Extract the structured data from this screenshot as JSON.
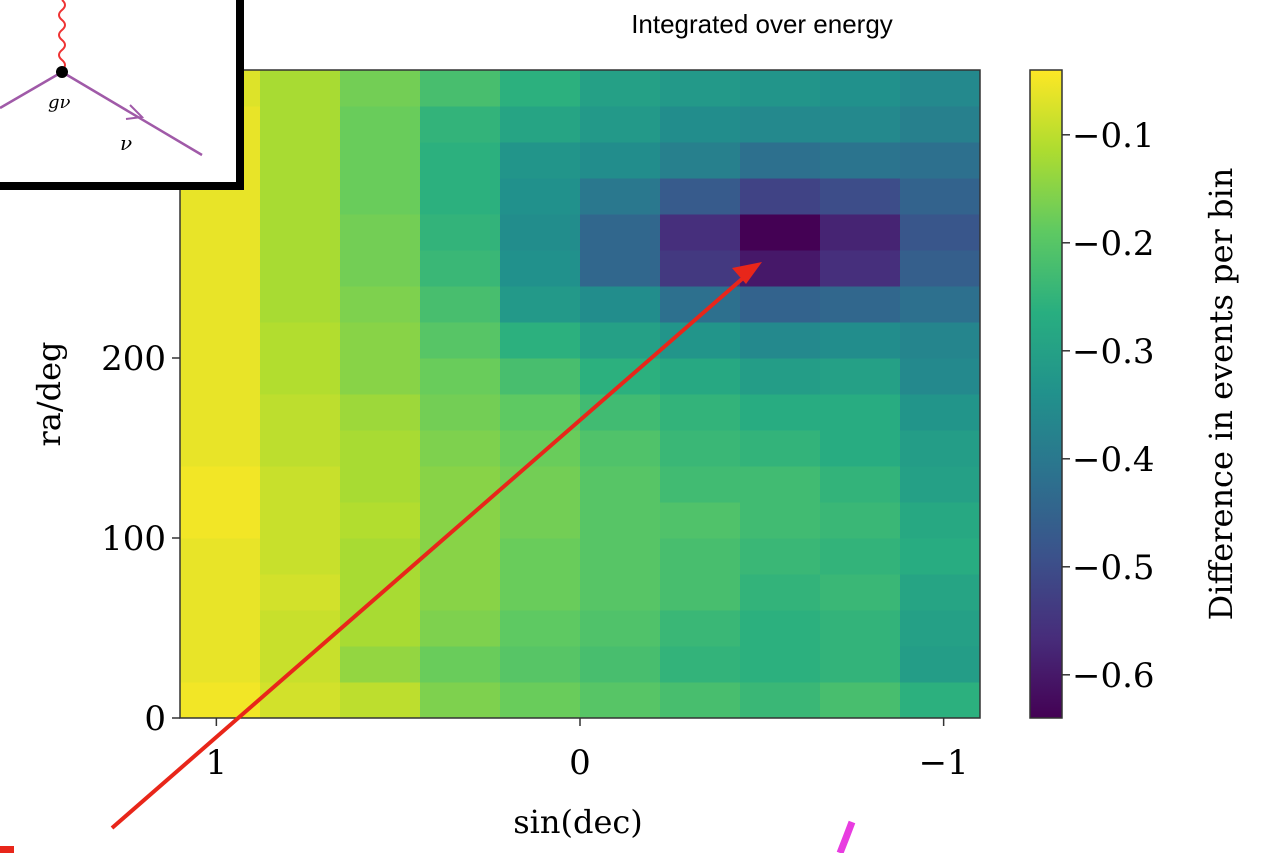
{
  "chart_data": {
    "type": "heatmap",
    "title": "Integrated over energy",
    "xlabel": "sin(dec)",
    "ylabel": "ra/deg",
    "colorbar_label": "Difference in events per bin",
    "inset_labels": [
      "gν",
      "ν"
    ],
    "cmap": "viridis",
    "xlim": [
      1.1,
      -1.1
    ],
    "ylim": [
      0,
      360
    ],
    "xticks": [
      1,
      0,
      {
        "value": -1,
        "label": "−1"
      }
    ],
    "yticks": [
      0,
      100,
      200
    ],
    "clim": [
      -0.64,
      -0.04
    ],
    "cticks": [
      {
        "value": -0.1,
        "label": "−0.1"
      },
      {
        "value": -0.2,
        "label": "−0.2"
      },
      {
        "value": -0.3,
        "label": "−0.3"
      },
      {
        "value": -0.4,
        "label": "−0.4"
      },
      {
        "value": -0.5,
        "label": "−0.5"
      },
      {
        "value": -0.6,
        "label": "−0.6"
      }
    ],
    "z": [
      [
        -0.05,
        -0.08,
        -0.1,
        -0.16,
        -0.18,
        -0.2,
        -0.22,
        -0.24,
        -0.22,
        -0.26
      ],
      [
        -0.06,
        -0.09,
        -0.14,
        -0.18,
        -0.2,
        -0.22,
        -0.25,
        -0.26,
        -0.25,
        -0.31
      ],
      [
        -0.06,
        -0.09,
        -0.12,
        -0.16,
        -0.19,
        -0.21,
        -0.24,
        -0.26,
        -0.25,
        -0.3
      ],
      [
        -0.06,
        -0.08,
        -0.12,
        -0.15,
        -0.18,
        -0.2,
        -0.22,
        -0.25,
        -0.24,
        -0.29
      ],
      [
        -0.06,
        -0.09,
        -0.12,
        -0.15,
        -0.18,
        -0.2,
        -0.22,
        -0.24,
        -0.25,
        -0.27
      ],
      [
        -0.05,
        -0.09,
        -0.11,
        -0.15,
        -0.17,
        -0.2,
        -0.21,
        -0.23,
        -0.24,
        -0.28
      ],
      [
        -0.05,
        -0.09,
        -0.12,
        -0.15,
        -0.17,
        -0.2,
        -0.23,
        -0.23,
        -0.25,
        -0.3
      ],
      [
        -0.06,
        -0.1,
        -0.12,
        -0.16,
        -0.18,
        -0.21,
        -0.24,
        -0.25,
        -0.27,
        -0.31
      ],
      [
        -0.06,
        -0.1,
        -0.13,
        -0.17,
        -0.19,
        -0.23,
        -0.25,
        -0.27,
        -0.27,
        -0.33
      ],
      [
        -0.06,
        -0.11,
        -0.15,
        -0.18,
        -0.22,
        -0.26,
        -0.28,
        -0.31,
        -0.3,
        -0.36
      ],
      [
        -0.06,
        -0.11,
        -0.15,
        -0.2,
        -0.26,
        -0.3,
        -0.33,
        -0.36,
        -0.35,
        -0.37
      ],
      [
        -0.06,
        -0.12,
        -0.16,
        -0.22,
        -0.32,
        -0.35,
        -0.42,
        -0.45,
        -0.44,
        -0.42
      ],
      [
        -0.06,
        -0.12,
        -0.17,
        -0.24,
        -0.34,
        -0.44,
        -0.54,
        -0.6,
        -0.56,
        -0.46
      ],
      [
        -0.06,
        -0.12,
        -0.17,
        -0.25,
        -0.35,
        -0.44,
        -0.56,
        -0.64,
        -0.58,
        -0.48
      ],
      [
        -0.06,
        -0.12,
        -0.18,
        -0.26,
        -0.34,
        -0.4,
        -0.47,
        -0.52,
        -0.5,
        -0.45
      ],
      [
        -0.06,
        -0.12,
        -0.18,
        -0.26,
        -0.33,
        -0.35,
        -0.38,
        -0.42,
        -0.41,
        -0.42
      ],
      [
        -0.06,
        -0.12,
        -0.18,
        -0.25,
        -0.29,
        -0.32,
        -0.35,
        -0.36,
        -0.36,
        -0.38
      ],
      [
        -0.07,
        -0.12,
        -0.17,
        -0.22,
        -0.26,
        -0.3,
        -0.32,
        -0.33,
        -0.34,
        -0.36
      ]
    ]
  }
}
